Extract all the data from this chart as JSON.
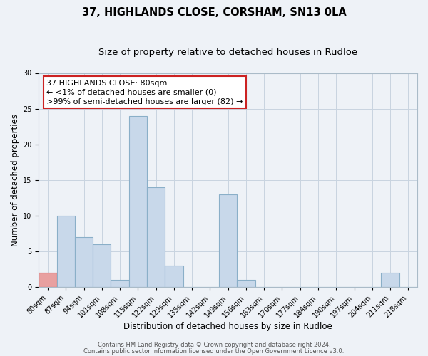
{
  "title": "37, HIGHLANDS CLOSE, CORSHAM, SN13 0LA",
  "subtitle": "Size of property relative to detached houses in Rudloe",
  "xlabel": "Distribution of detached houses by size in Rudloe",
  "ylabel": "Number of detached properties",
  "bins": [
    "80sqm",
    "87sqm",
    "94sqm",
    "101sqm",
    "108sqm",
    "115sqm",
    "122sqm",
    "129sqm",
    "135sqm",
    "142sqm",
    "149sqm",
    "156sqm",
    "163sqm",
    "170sqm",
    "177sqm",
    "184sqm",
    "190sqm",
    "197sqm",
    "204sqm",
    "211sqm",
    "218sqm"
  ],
  "values": [
    2,
    10,
    7,
    6,
    1,
    24,
    14,
    3,
    0,
    0,
    13,
    1,
    0,
    0,
    0,
    0,
    0,
    0,
    0,
    2,
    0
  ],
  "bar_color": "#c8d8ea",
  "bar_edge_color": "#8aafc8",
  "highlight_bar_index": 0,
  "highlight_bar_color": "#e8a0a0",
  "highlight_bar_edge_color": "#cc2222",
  "ylim": [
    0,
    30
  ],
  "yticks": [
    0,
    5,
    10,
    15,
    20,
    25,
    30
  ],
  "annotation_line1": "37 HIGHLANDS CLOSE: 80sqm",
  "annotation_line2": "← <1% of detached houses are smaller (0)",
  "annotation_line3": ">99% of semi-detached houses are larger (82) →",
  "footer_line1": "Contains HM Land Registry data © Crown copyright and database right 2024.",
  "footer_line2": "Contains public sector information licensed under the Open Government Licence v3.0.",
  "background_color": "#eef2f7",
  "plot_background_color": "#eef2f7",
  "grid_color": "#c8d4e0",
  "title_fontsize": 10.5,
  "subtitle_fontsize": 9.5,
  "axis_label_fontsize": 8.5,
  "tick_fontsize": 7,
  "footer_fontsize": 6,
  "annotation_fontsize": 8
}
